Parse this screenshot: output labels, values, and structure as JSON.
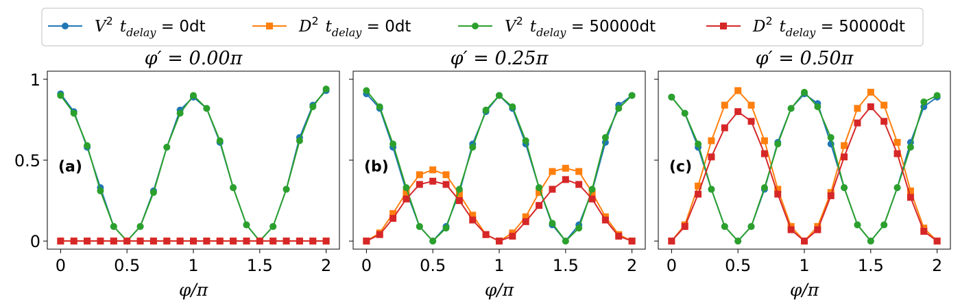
{
  "legend": [
    {
      "key": "V2_0",
      "sym": "V",
      "sup": "2",
      "sub": "delay",
      "value": "0dt",
      "color": "#1f77b4",
      "marker": "circle"
    },
    {
      "key": "D2_0",
      "sym": "D",
      "sup": "2",
      "sub": "delay",
      "value": "0dt",
      "color": "#ff7f0e",
      "marker": "square"
    },
    {
      "key": "V2_50000",
      "sym": "V",
      "sup": "2",
      "sub": "delay",
      "value": "50000dt",
      "color": "#2ca02c",
      "marker": "circle"
    },
    {
      "key": "D2_50000",
      "sym": "D",
      "sup": "2",
      "sub": "delay",
      "value": "50000dt",
      "color": "#d62728",
      "marker": "square"
    }
  ],
  "chart_data": [
    {
      "type": "line",
      "title": "φ′ = 0.00π",
      "panel_label": "(a)",
      "xlabel": "φ/π",
      "ylabel": "",
      "xlim": [
        -0.1,
        2.1
      ],
      "ylim": [
        -0.05,
        1.05
      ],
      "xticks": [
        0,
        0.5,
        1,
        1.5,
        2
      ],
      "xtick_labels": [
        "0",
        "0.5",
        "1",
        "1.5",
        "2"
      ],
      "yticks": [
        0,
        0.5,
        1
      ],
      "ytick_labels": [
        "0",
        "0.5",
        "1"
      ],
      "x": [
        0,
        0.1,
        0.2,
        0.3,
        0.4,
        0.5,
        0.6,
        0.7,
        0.8,
        0.9,
        1.0,
        1.1,
        1.2,
        1.3,
        1.4,
        1.5,
        1.6,
        1.7,
        1.8,
        1.9,
        2.0
      ],
      "series": [
        {
          "name": "V2_0",
          "values": [
            0.91,
            0.8,
            0.58,
            0.33,
            0.09,
            0.0,
            0.09,
            0.31,
            0.58,
            0.81,
            0.89,
            0.82,
            0.61,
            0.33,
            0.1,
            0.0,
            0.09,
            0.32,
            0.64,
            0.84,
            0.93
          ]
        },
        {
          "name": "D2_0",
          "values": [
            0,
            0,
            0,
            0,
            0,
            0,
            0,
            0,
            0,
            0,
            0,
            0,
            0,
            0,
            0,
            0,
            0,
            0,
            0,
            0,
            0
          ]
        },
        {
          "name": "V2_50000",
          "values": [
            0.9,
            0.79,
            0.59,
            0.31,
            0.09,
            0.0,
            0.09,
            0.3,
            0.58,
            0.79,
            0.9,
            0.82,
            0.62,
            0.33,
            0.1,
            0.0,
            0.09,
            0.32,
            0.62,
            0.83,
            0.94
          ]
        },
        {
          "name": "D2_50000",
          "values": [
            0,
            0,
            0,
            0,
            0,
            0,
            0,
            0,
            0,
            0,
            0,
            0,
            0,
            0,
            0,
            0,
            0,
            0,
            0,
            0,
            0
          ]
        }
      ]
    },
    {
      "type": "line",
      "title": "φ′ = 0.25π",
      "panel_label": "(b)",
      "xlabel": "φ/π",
      "ylabel": "",
      "xlim": [
        -0.1,
        2.1
      ],
      "ylim": [
        -0.05,
        1.05
      ],
      "xticks": [
        0,
        0.5,
        1,
        1.5,
        2
      ],
      "xtick_labels": [
        "0",
        "0.5",
        "1",
        "1.5",
        "2"
      ],
      "yticks": [
        0,
        0.5,
        1
      ],
      "ytick_labels": [
        "",
        "",
        ""
      ],
      "x": [
        0,
        0.1,
        0.2,
        0.3,
        0.4,
        0.5,
        0.6,
        0.7,
        0.8,
        0.9,
        1.0,
        1.1,
        1.2,
        1.3,
        1.4,
        1.5,
        1.6,
        1.7,
        1.8,
        1.9,
        2.0
      ],
      "series": [
        {
          "name": "V2_0",
          "values": [
            0.91,
            0.82,
            0.58,
            0.31,
            0.09,
            0.0,
            0.09,
            0.3,
            0.6,
            0.8,
            0.9,
            0.82,
            0.6,
            0.33,
            0.1,
            0.0,
            0.1,
            0.31,
            0.61,
            0.84,
            0.9
          ]
        },
        {
          "name": "D2_0",
          "values": [
            0.0,
            0.05,
            0.17,
            0.3,
            0.41,
            0.44,
            0.41,
            0.29,
            0.16,
            0.04,
            0.0,
            0.05,
            0.15,
            0.3,
            0.43,
            0.45,
            0.43,
            0.3,
            0.15,
            0.04,
            0.0
          ]
        },
        {
          "name": "V2_50000",
          "values": [
            0.93,
            0.83,
            0.6,
            0.33,
            0.09,
            0.0,
            0.08,
            0.32,
            0.58,
            0.81,
            0.9,
            0.83,
            0.62,
            0.33,
            0.11,
            0.0,
            0.08,
            0.32,
            0.64,
            0.82,
            0.9
          ]
        },
        {
          "name": "D2_50000",
          "values": [
            0.0,
            0.04,
            0.14,
            0.26,
            0.35,
            0.37,
            0.35,
            0.25,
            0.13,
            0.04,
            0.0,
            0.03,
            0.12,
            0.22,
            0.32,
            0.38,
            0.35,
            0.26,
            0.13,
            0.03,
            0.0
          ]
        }
      ]
    },
    {
      "type": "line",
      "title": "φ′ = 0.50π",
      "panel_label": "(c)",
      "xlabel": "φ/π",
      "ylabel": "",
      "xlim": [
        -0.1,
        2.1
      ],
      "ylim": [
        -0.05,
        1.05
      ],
      "xticks": [
        0,
        0.5,
        1,
        1.5,
        2
      ],
      "xtick_labels": [
        "0",
        "0.5",
        "1",
        "1.5",
        "2"
      ],
      "yticks": [
        0,
        0.5,
        1
      ],
      "ytick_labels": [
        "",
        "",
        ""
      ],
      "x": [
        0,
        0.1,
        0.2,
        0.3,
        0.4,
        0.5,
        0.6,
        0.7,
        0.8,
        0.9,
        1.0,
        1.1,
        1.2,
        1.3,
        1.4,
        1.5,
        1.6,
        1.7,
        1.8,
        1.9,
        2.0
      ],
      "series": [
        {
          "name": "V2_0",
          "values": [
            0.89,
            0.79,
            0.58,
            0.32,
            0.09,
            0.0,
            0.09,
            0.32,
            0.61,
            0.82,
            0.91,
            0.85,
            0.6,
            0.33,
            0.1,
            0.0,
            0.1,
            0.33,
            0.61,
            0.83,
            0.89
          ]
        },
        {
          "name": "D2_0",
          "values": [
            0.0,
            0.1,
            0.34,
            0.62,
            0.84,
            0.93,
            0.84,
            0.62,
            0.32,
            0.09,
            0.0,
            0.09,
            0.3,
            0.59,
            0.82,
            0.92,
            0.84,
            0.61,
            0.31,
            0.08,
            0.0
          ]
        },
        {
          "name": "V2_50000",
          "values": [
            0.89,
            0.79,
            0.6,
            0.32,
            0.09,
            0.0,
            0.09,
            0.33,
            0.6,
            0.82,
            0.92,
            0.83,
            0.64,
            0.33,
            0.1,
            0.0,
            0.1,
            0.33,
            0.58,
            0.86,
            0.9
          ]
        },
        {
          "name": "D2_50000",
          "values": [
            0.0,
            0.09,
            0.29,
            0.52,
            0.7,
            0.8,
            0.74,
            0.54,
            0.29,
            0.07,
            0.0,
            0.07,
            0.28,
            0.52,
            0.73,
            0.83,
            0.74,
            0.54,
            0.27,
            0.06,
            0.0
          ]
        }
      ]
    }
  ]
}
